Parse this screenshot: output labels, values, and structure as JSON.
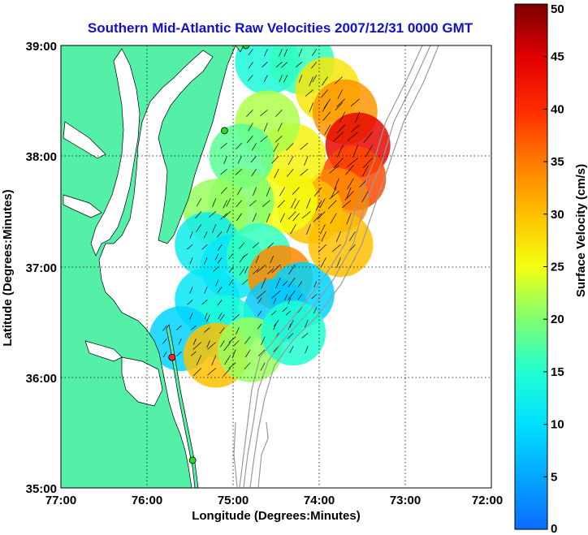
{
  "chart_data": {
    "type": "heatmap",
    "title": "Southern Mid-Atlantic Raw Velocities 2007/12/31 0000 GMT",
    "xlabel": "Longitude (Degrees:Minutes)",
    "ylabel": "Latitude (Degrees:Minutes)",
    "xlim": [
      -77,
      -72
    ],
    "ylim": [
      35,
      39
    ],
    "x_ticks": [
      -77,
      -76,
      -75,
      -74,
      -73,
      -72
    ],
    "x_tick_labels": [
      "77:00",
      "76:00",
      "75:00",
      "74:00",
      "73:00",
      "72:00"
    ],
    "y_ticks": [
      35,
      36,
      37,
      38,
      39
    ],
    "y_tick_labels": [
      "35:00",
      "36:00",
      "37:00",
      "38:00",
      "39:00"
    ],
    "grid": true,
    "colorbar": {
      "label": "Surface Velocity (cm/s)",
      "range": [
        0,
        50
      ],
      "ticks": [
        0,
        5,
        10,
        15,
        20,
        25,
        30,
        35,
        40,
        45,
        50
      ],
      "tick_labels": [
        "0",
        "5",
        "10",
        "15",
        "20",
        "25",
        "30",
        "35",
        "40",
        "45",
        "50"
      ]
    },
    "colors": {
      "land": "#55f0a8",
      "grid": "#000000",
      "bathymetry": "#999999"
    },
    "stations": [
      {
        "lon": -74.85,
        "lat": 39.0,
        "color": "#22dd22"
      },
      {
        "lon": -75.1,
        "lat": 38.23,
        "color": "#22dd22"
      },
      {
        "lon": -75.71,
        "lat": 36.18,
        "color": "#ff2222"
      },
      {
        "lon": -75.47,
        "lat": 35.25,
        "color": "#22dd22"
      }
    ],
    "velocity_field": [
      {
        "lon": -74.6,
        "lat": 38.85,
        "speed": 14
      },
      {
        "lon": -74.2,
        "lat": 38.85,
        "speed": 16
      },
      {
        "lon": -73.9,
        "lat": 38.6,
        "speed": 27
      },
      {
        "lon": -73.7,
        "lat": 38.4,
        "speed": 33
      },
      {
        "lon": -73.55,
        "lat": 38.1,
        "speed": 44
      },
      {
        "lon": -73.6,
        "lat": 37.8,
        "speed": 38
      },
      {
        "lon": -73.8,
        "lat": 37.6,
        "speed": 34
      },
      {
        "lon": -74.1,
        "lat": 37.5,
        "speed": 30
      },
      {
        "lon": -74.4,
        "lat": 37.6,
        "speed": 25
      },
      {
        "lon": -74.3,
        "lat": 38.0,
        "speed": 26
      },
      {
        "lon": -74.6,
        "lat": 38.3,
        "speed": 22
      },
      {
        "lon": -74.9,
        "lat": 38.0,
        "speed": 18
      },
      {
        "lon": -74.9,
        "lat": 37.6,
        "speed": 20
      },
      {
        "lon": -75.2,
        "lat": 37.5,
        "speed": 21
      },
      {
        "lon": -75.3,
        "lat": 37.2,
        "speed": 12
      },
      {
        "lon": -75.0,
        "lat": 37.0,
        "speed": 11
      },
      {
        "lon": -74.7,
        "lat": 37.1,
        "speed": 16
      },
      {
        "lon": -74.45,
        "lat": 36.9,
        "speed": 34
      },
      {
        "lon": -74.2,
        "lat": 36.75,
        "speed": 9
      },
      {
        "lon": -74.5,
        "lat": 36.6,
        "speed": 8
      },
      {
        "lon": -75.3,
        "lat": 36.7,
        "speed": 11
      },
      {
        "lon": -75.1,
        "lat": 36.45,
        "speed": 14
      },
      {
        "lon": -75.6,
        "lat": 36.35,
        "speed": 9
      },
      {
        "lon": -75.2,
        "lat": 36.2,
        "speed": 30
      },
      {
        "lon": -74.8,
        "lat": 36.25,
        "speed": 21
      },
      {
        "lon": -74.3,
        "lat": 36.4,
        "speed": 15
      },
      {
        "lon": -73.75,
        "lat": 37.2,
        "speed": 30
      }
    ]
  }
}
